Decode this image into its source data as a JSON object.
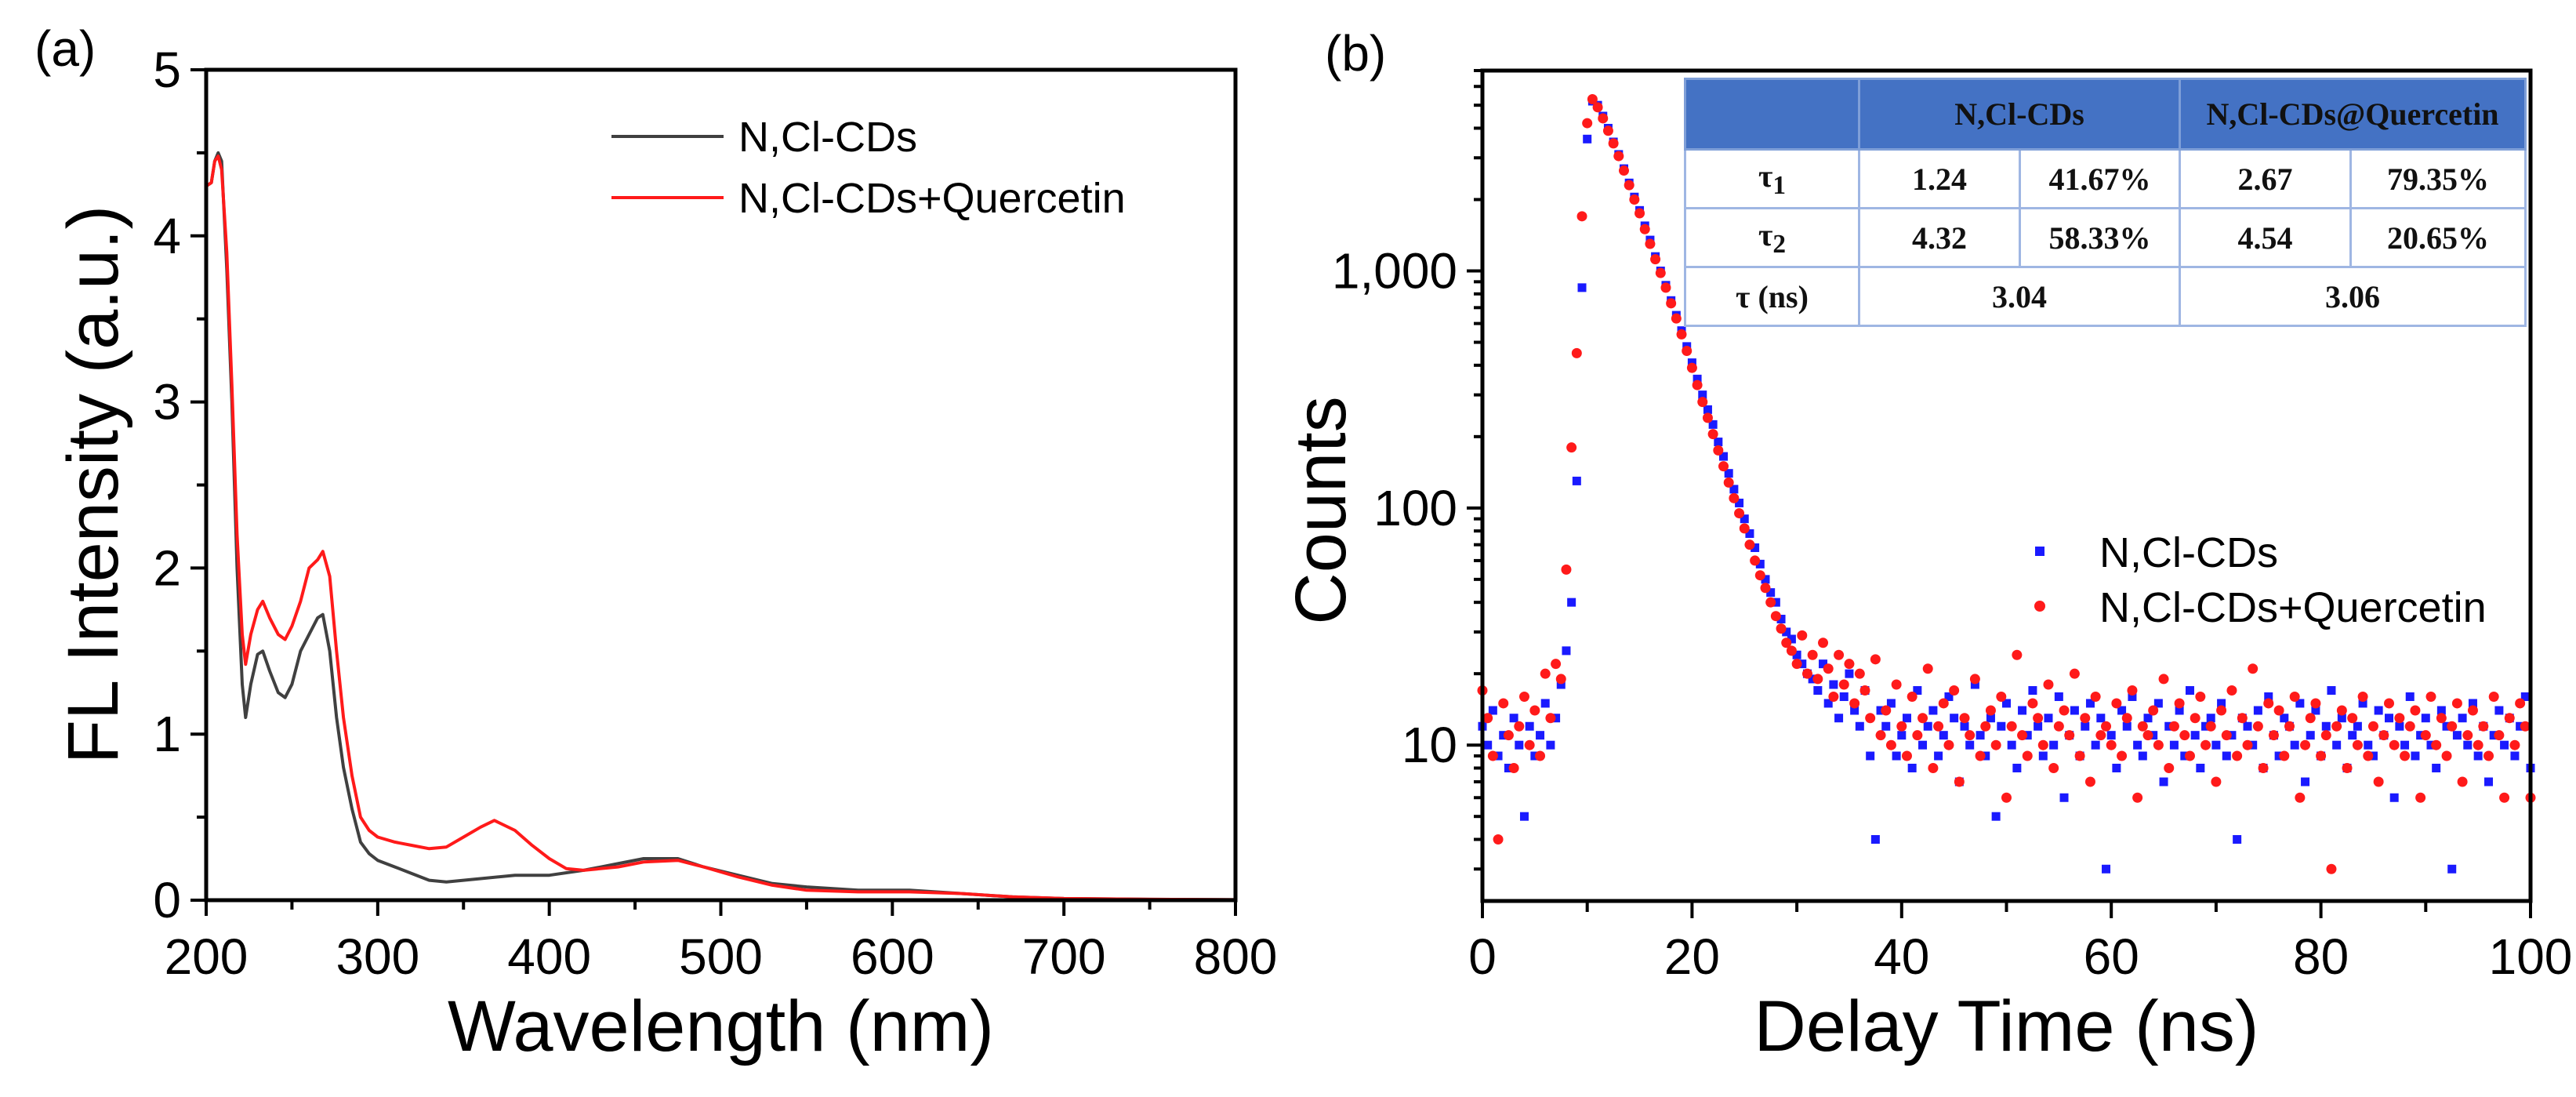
{
  "chart_data": [
    {
      "panel_label": "(a)",
      "type": "line",
      "xlabel": "Wavelength (nm)",
      "ylabel": "FL Intensity (a.u.)",
      "xlim": [
        200,
        800
      ],
      "ylim": [
        0,
        5
      ],
      "xticks": [
        200,
        300,
        400,
        500,
        600,
        700,
        800
      ],
      "yticks": [
        0,
        1,
        2,
        3,
        4,
        5
      ],
      "grid": false,
      "legend_position": "top-right",
      "series": [
        {
          "name": "N,Cl-CDs",
          "color": "#404040",
          "x": [
            200,
            203,
            205,
            207,
            209,
            212,
            215,
            218,
            221,
            223,
            226,
            230,
            233,
            237,
            242,
            246,
            250,
            255,
            260,
            265,
            268,
            272,
            276,
            280,
            285,
            290,
            295,
            300,
            310,
            320,
            330,
            340,
            350,
            360,
            380,
            400,
            420,
            440,
            455,
            475,
            490,
            510,
            530,
            550,
            580,
            610,
            640,
            670,
            700,
            750,
            800
          ],
          "y": [
            4.3,
            4.32,
            4.45,
            4.5,
            4.45,
            3.8,
            3.0,
            2.0,
            1.3,
            1.1,
            1.3,
            1.48,
            1.5,
            1.38,
            1.25,
            1.22,
            1.3,
            1.5,
            1.6,
            1.7,
            1.72,
            1.5,
            1.1,
            0.8,
            0.55,
            0.35,
            0.28,
            0.24,
            0.2,
            0.16,
            0.12,
            0.11,
            0.12,
            0.13,
            0.15,
            0.15,
            0.18,
            0.22,
            0.25,
            0.25,
            0.2,
            0.15,
            0.1,
            0.08,
            0.06,
            0.06,
            0.04,
            0.02,
            0.01,
            0.005,
            0.003
          ]
        },
        {
          "name": "N,Cl-CDs+Quercetin",
          "color": "#ff1a1a",
          "x": [
            200,
            203,
            205,
            207,
            209,
            212,
            215,
            218,
            221,
            223,
            226,
            230,
            233,
            237,
            242,
            246,
            250,
            255,
            260,
            265,
            268,
            272,
            276,
            280,
            285,
            290,
            295,
            300,
            310,
            320,
            330,
            340,
            350,
            360,
            368,
            380,
            390,
            400,
            410,
            420,
            440,
            455,
            475,
            490,
            510,
            530,
            550,
            580,
            610,
            640,
            670,
            700,
            750,
            800
          ],
          "y": [
            4.3,
            4.32,
            4.45,
            4.48,
            4.4,
            3.9,
            3.1,
            2.2,
            1.6,
            1.42,
            1.6,
            1.75,
            1.8,
            1.7,
            1.6,
            1.57,
            1.65,
            1.8,
            2.0,
            2.05,
            2.1,
            1.95,
            1.5,
            1.1,
            0.75,
            0.5,
            0.42,
            0.38,
            0.35,
            0.33,
            0.31,
            0.32,
            0.38,
            0.44,
            0.48,
            0.42,
            0.33,
            0.25,
            0.19,
            0.18,
            0.2,
            0.23,
            0.24,
            0.2,
            0.14,
            0.09,
            0.06,
            0.05,
            0.05,
            0.04,
            0.02,
            0.01,
            0.005,
            0.003
          ]
        }
      ]
    },
    {
      "panel_label": "(b)",
      "type": "scatter",
      "xlabel": "Delay Time (ns)",
      "ylabel": "Counts",
      "xlim": [
        0,
        100
      ],
      "ylim": [
        2.2,
        7000
      ],
      "yscale": "log",
      "xticks": [
        0,
        20,
        40,
        60,
        80,
        100
      ],
      "yticks": [
        10,
        100,
        1000
      ],
      "ytick_labels": [
        "10",
        "100",
        "1,000"
      ],
      "grid": false,
      "legend_position": "center-right",
      "x_start": 0,
      "x_step": 0.5,
      "series": [
        {
          "name": "N,Cl-CDs",
          "color": "#1a1aff",
          "marker": "square",
          "y": [
            12,
            10,
            14,
            9,
            11,
            8,
            13,
            10,
            5,
            12,
            9,
            11,
            15,
            10,
            13,
            18,
            25,
            40,
            130,
            850,
            3600,
            5200,
            5000,
            4500,
            4000,
            3500,
            3100,
            2700,
            2350,
            2050,
            1800,
            1550,
            1350,
            1150,
            1000,
            870,
            750,
            650,
            560,
            480,
            410,
            350,
            300,
            260,
            225,
            190,
            165,
            140,
            120,
            105,
            90,
            78,
            68,
            58,
            50,
            44,
            40,
            34,
            30,
            28,
            24,
            22,
            20,
            19,
            17,
            22,
            15,
            18,
            13,
            16,
            20,
            14,
            12,
            17,
            9,
            4,
            14,
            12,
            15,
            9,
            11,
            13,
            8,
            17,
            10,
            12,
            14,
            9,
            11,
            16,
            13,
            7,
            12,
            10,
            18,
            11,
            9,
            13,
            5,
            12,
            15,
            10,
            8,
            14,
            11,
            17,
            12,
            9,
            13,
            10,
            16,
            6,
            11,
            14,
            9,
            12,
            15,
            10,
            13,
            3,
            11,
            8,
            14,
            12,
            16,
            10,
            9,
            13,
            11,
            15,
            7,
            12,
            10,
            14,
            9,
            17,
            11,
            8,
            12,
            13,
            10,
            15,
            9,
            11,
            4,
            13,
            12,
            10,
            14,
            8,
            16,
            11,
            9,
            13,
            12,
            10,
            15,
            7,
            11,
            14,
            9,
            12,
            17,
            10,
            13,
            8,
            11,
            12,
            15,
            10,
            9,
            14,
            11,
            13,
            6,
            12,
            10,
            16,
            9,
            11,
            13,
            10,
            8,
            14,
            12,
            3,
            11,
            13,
            10,
            15,
            9,
            12,
            7,
            11,
            14,
            10,
            13,
            9,
            12,
            16,
            8
          ]
        },
        {
          "name": "N,Cl-CDs+Quercetin",
          "color": "#ff1a1a",
          "marker": "circle",
          "y": [
            17,
            13,
            9,
            4,
            15,
            11,
            8,
            12,
            16,
            10,
            14,
            9,
            20,
            13,
            22,
            19,
            55,
            180,
            450,
            1700,
            4200,
            5300,
            4900,
            4400,
            3900,
            3450,
            3050,
            2650,
            2300,
            2000,
            1750,
            1500,
            1300,
            1120,
            980,
            850,
            730,
            630,
            540,
            460,
            390,
            330,
            280,
            240,
            205,
            175,
            150,
            128,
            110,
            95,
            82,
            70,
            60,
            52,
            46,
            40,
            35,
            31,
            27,
            25,
            22,
            29,
            20,
            24,
            19,
            27,
            21,
            16,
            24,
            18,
            22,
            15,
            20,
            17,
            13,
            23,
            11,
            14,
            10,
            18,
            12,
            9,
            16,
            11,
            13,
            21,
            8,
            12,
            15,
            10,
            17,
            7,
            13,
            11,
            19,
            9,
            12,
            14,
            10,
            16,
            6,
            12,
            24,
            11,
            9,
            15,
            13,
            10,
            18,
            8,
            12,
            14,
            11,
            20,
            9,
            13,
            7,
            16,
            11,
            12,
            10,
            15,
            9,
            13,
            17,
            6,
            12,
            11,
            14,
            10,
            19,
            8,
            12,
            15,
            11,
            9,
            13,
            16,
            10,
            12,
            7,
            14,
            11,
            17,
            9,
            13,
            10,
            21,
            12,
            8,
            15,
            11,
            14,
            9,
            12,
            16,
            6,
            10,
            13,
            15,
            9,
            11,
            3,
            12,
            14,
            8,
            13,
            10,
            16,
            9,
            12,
            7,
            11,
            15,
            10,
            13,
            9,
            12,
            14,
            6,
            11,
            16,
            10,
            13,
            9,
            12,
            15,
            7,
            11,
            14,
            10,
            12,
            9,
            16,
            11,
            6,
            13,
            10,
            15,
            12,
            6
          ]
        }
      ],
      "inset_table": {
        "header": [
          "",
          "N,Cl-CDs",
          "N,Cl-CDs@Quercetin"
        ],
        "rows": [
          {
            "label": "τ",
            "sub": "1",
            "cells": [
              "1.24",
              "41.67%",
              "2.67",
              "79.35%"
            ]
          },
          {
            "label": "τ",
            "sub": "2",
            "cells": [
              "4.32",
              "58.33%",
              "4.54",
              "20.65%"
            ]
          }
        ],
        "avg_row": {
          "label": "τ (ns)",
          "cells": [
            "3.04",
            "3.06"
          ]
        }
      }
    }
  ]
}
